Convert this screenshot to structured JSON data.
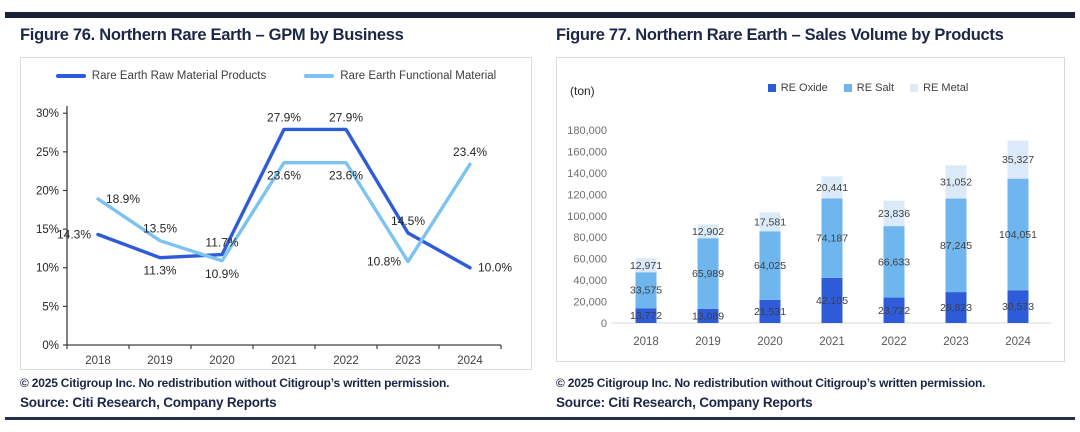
{
  "page": {
    "accent_navy": "#1c2745",
    "rule_color": "#1a2136",
    "border_color": "#d9d9d9"
  },
  "figures": {
    "left": {
      "title": "Figure 76. Northern Rare Earth – GPM by Business",
      "copyright": "© 2025 Citigroup Inc. No redistribution without Citigroup’s written permission.",
      "source": "Source: Citi Research, Company Reports"
    },
    "right": {
      "title": "Figure 77. Northern Rare Earth – Sales Volume by Products",
      "unit": "(ton)",
      "copyright": "© 2025 Citigroup Inc. No redistribution without Citigroup’s written permission.",
      "source": "Source: Citi Research, Company Reports"
    }
  },
  "chart_data": [
    {
      "type": "line",
      "title": "Figure 76. Northern Rare Earth – GPM by Business",
      "categories": [
        "2018",
        "2019",
        "2020",
        "2021",
        "2022",
        "2023",
        "2024"
      ],
      "series": [
        {
          "name": "Rare Earth Raw Material Products",
          "color": "#2e5cd8",
          "values": [
            14.3,
            11.3,
            11.7,
            27.9,
            27.9,
            14.5,
            10.0
          ],
          "labels": [
            "14.3%",
            "11.3%",
            "11.7%",
            "27.9%",
            "27.9%",
            "14.5%",
            "10.0%"
          ],
          "label_pos": [
            "left",
            "below",
            "above",
            "above",
            "above",
            "above",
            "right"
          ]
        },
        {
          "name": "Rare Earth Functional Material",
          "color": "#7cc3f0",
          "values": [
            18.9,
            13.5,
            10.9,
            23.6,
            23.6,
            10.8,
            23.4
          ],
          "labels": [
            "18.9%",
            "13.5%",
            "10.9%",
            "23.6%",
            "23.6%",
            "10.8%",
            "23.4%"
          ],
          "label_pos": [
            "right",
            "above",
            "below",
            "below",
            "below",
            "left",
            "above"
          ]
        }
      ],
      "xlabel": "",
      "ylabel": "",
      "ylim": [
        0,
        30
      ],
      "y_ticks": [
        "0%",
        "5%",
        "10%",
        "15%",
        "20%",
        "25%",
        "30%"
      ],
      "grid": false,
      "legend_position": "top"
    },
    {
      "type": "bar",
      "stacked": true,
      "title": "Figure 77. Northern Rare Earth – Sales Volume by Products",
      "unit": "(ton)",
      "categories": [
        "2018",
        "2019",
        "2020",
        "2021",
        "2022",
        "2023",
        "2024"
      ],
      "series": [
        {
          "name": "RE Oxide",
          "color": "#2e5cd8",
          "values": [
            13772,
            13089,
            21531,
            42105,
            23722,
            28823,
            30573
          ]
        },
        {
          "name": "RE Salt",
          "color": "#6fb6ee",
          "values": [
            33575,
            65989,
            64025,
            74187,
            66633,
            87245,
            104051
          ]
        },
        {
          "name": "RE Metal",
          "color": "#daeaf8",
          "values": [
            12971,
            12902,
            17581,
            20441,
            23836,
            31052,
            35327
          ]
        }
      ],
      "xlabel": "",
      "ylabel": "(ton)",
      "ylim": [
        0,
        180000
      ],
      "y_tick_step": 20000,
      "grid": false,
      "legend_position": "top"
    }
  ]
}
